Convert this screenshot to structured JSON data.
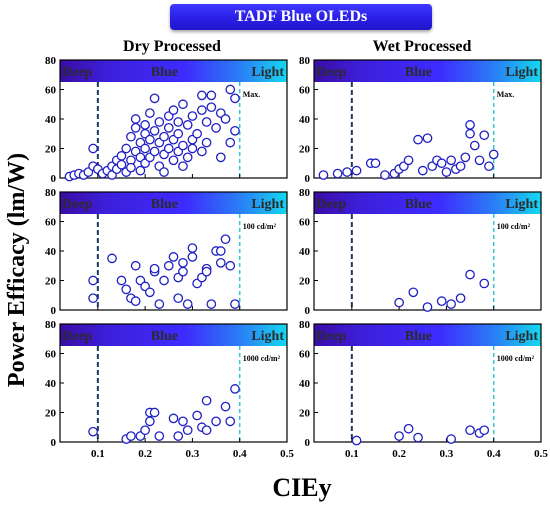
{
  "banner_title": "TADF Blue OLEDs",
  "y_axis_label": "Power Efficacy (lm/W)",
  "x_axis_label": "CIEy",
  "column_titles": [
    "Dry Processed",
    "Wet Processed"
  ],
  "region_labels": {
    "deep": "Deep",
    "blue": "Blue",
    "light": "Light"
  },
  "colors": {
    "banner": "#2a1fe6",
    "gradient_start": "#3a0ca3",
    "gradient_mid": "#3d2bff",
    "gradient_end": "#14d8f0",
    "marker_stroke": "#1f1fc4",
    "deep_line": "#1c3a5e",
    "light_line": "#2ec7d6"
  },
  "chart_data": [
    {
      "type": "scatter",
      "panel": "dry-max",
      "annotation": "Max.",
      "xlim": [
        0.02,
        0.5
      ],
      "ylim": [
        0,
        80
      ],
      "yticks": [
        0,
        20,
        40,
        60,
        80
      ],
      "xticks": [
        0.1,
        0.2,
        0.3,
        0.4,
        0.5
      ],
      "vlines": {
        "deep": 0.1,
        "light": 0.4
      },
      "points": [
        [
          0.04,
          1
        ],
        [
          0.05,
          2
        ],
        [
          0.06,
          3
        ],
        [
          0.07,
          2
        ],
        [
          0.08,
          4
        ],
        [
          0.09,
          8
        ],
        [
          0.09,
          20
        ],
        [
          0.1,
          6
        ],
        [
          0.11,
          3
        ],
        [
          0.12,
          5
        ],
        [
          0.13,
          8
        ],
        [
          0.13,
          2
        ],
        [
          0.14,
          12
        ],
        [
          0.14,
          6
        ],
        [
          0.15,
          15
        ],
        [
          0.15,
          9
        ],
        [
          0.16,
          4
        ],
        [
          0.16,
          20
        ],
        [
          0.17,
          12
        ],
        [
          0.17,
          28
        ],
        [
          0.17,
          7
        ],
        [
          0.18,
          18
        ],
        [
          0.18,
          34
        ],
        [
          0.18,
          40
        ],
        [
          0.19,
          14
        ],
        [
          0.19,
          24
        ],
        [
          0.19,
          5
        ],
        [
          0.2,
          30
        ],
        [
          0.2,
          36
        ],
        [
          0.2,
          10
        ],
        [
          0.2,
          20
        ],
        [
          0.21,
          26
        ],
        [
          0.21,
          44
        ],
        [
          0.21,
          14
        ],
        [
          0.22,
          54
        ],
        [
          0.22,
          18
        ],
        [
          0.22,
          32
        ],
        [
          0.23,
          8
        ],
        [
          0.23,
          24
        ],
        [
          0.23,
          38
        ],
        [
          0.24,
          16
        ],
        [
          0.24,
          28
        ],
        [
          0.24,
          4
        ],
        [
          0.25,
          34
        ],
        [
          0.25,
          20
        ],
        [
          0.25,
          42
        ],
        [
          0.26,
          12
        ],
        [
          0.26,
          26
        ],
        [
          0.26,
          46
        ],
        [
          0.27,
          30
        ],
        [
          0.27,
          18
        ],
        [
          0.27,
          38
        ],
        [
          0.28,
          22
        ],
        [
          0.28,
          50
        ],
        [
          0.28,
          8
        ],
        [
          0.29,
          36
        ],
        [
          0.29,
          14
        ],
        [
          0.3,
          42
        ],
        [
          0.3,
          26
        ],
        [
          0.3,
          20
        ],
        [
          0.31,
          30
        ],
        [
          0.32,
          56
        ],
        [
          0.32,
          46
        ],
        [
          0.32,
          18
        ],
        [
          0.33,
          38
        ],
        [
          0.33,
          24
        ],
        [
          0.34,
          56
        ],
        [
          0.34,
          48
        ],
        [
          0.35,
          34
        ],
        [
          0.36,
          44
        ],
        [
          0.36,
          14
        ],
        [
          0.37,
          40
        ],
        [
          0.38,
          60
        ],
        [
          0.38,
          24
        ],
        [
          0.39,
          32
        ],
        [
          0.39,
          54
        ]
      ]
    },
    {
      "type": "scatter",
      "panel": "wet-max",
      "annotation": "Max.",
      "xlim": [
        0.02,
        0.5
      ],
      "ylim": [
        0,
        80
      ],
      "yticks": [
        0,
        20,
        40,
        60,
        80
      ],
      "xticks": [
        0.1,
        0.2,
        0.3,
        0.4,
        0.5
      ],
      "vlines": {
        "deep": 0.1,
        "light": 0.4
      },
      "points": [
        [
          0.04,
          2
        ],
        [
          0.07,
          3
        ],
        [
          0.09,
          4
        ],
        [
          0.11,
          5
        ],
        [
          0.14,
          10
        ],
        [
          0.15,
          10
        ],
        [
          0.17,
          2
        ],
        [
          0.19,
          3
        ],
        [
          0.2,
          6
        ],
        [
          0.21,
          8
        ],
        [
          0.22,
          12
        ],
        [
          0.24,
          26
        ],
        [
          0.25,
          5
        ],
        [
          0.26,
          27
        ],
        [
          0.27,
          8
        ],
        [
          0.28,
          12
        ],
        [
          0.29,
          10
        ],
        [
          0.3,
          4
        ],
        [
          0.31,
          12
        ],
        [
          0.32,
          6
        ],
        [
          0.33,
          8
        ],
        [
          0.34,
          14
        ],
        [
          0.35,
          36
        ],
        [
          0.35,
          30
        ],
        [
          0.36,
          22
        ],
        [
          0.37,
          12
        ],
        [
          0.38,
          29
        ],
        [
          0.39,
          8
        ],
        [
          0.4,
          16
        ]
      ]
    },
    {
      "type": "scatter",
      "panel": "dry-100",
      "annotation": "100 cd/m²",
      "xlim": [
        0.02,
        0.5
      ],
      "ylim": [
        0,
        80
      ],
      "yticks": [
        0,
        20,
        40,
        60,
        80
      ],
      "xticks": [
        0.1,
        0.2,
        0.3,
        0.4,
        0.5
      ],
      "vlines": {
        "deep": 0.1,
        "light": 0.4
      },
      "points": [
        [
          0.09,
          8
        ],
        [
          0.09,
          20
        ],
        [
          0.13,
          35
        ],
        [
          0.15,
          20
        ],
        [
          0.16,
          14
        ],
        [
          0.17,
          8
        ],
        [
          0.18,
          6
        ],
        [
          0.18,
          30
        ],
        [
          0.19,
          20
        ],
        [
          0.2,
          16
        ],
        [
          0.21,
          12
        ],
        [
          0.22,
          26
        ],
        [
          0.22,
          28
        ],
        [
          0.23,
          4
        ],
        [
          0.24,
          20
        ],
        [
          0.25,
          30
        ],
        [
          0.26,
          36
        ],
        [
          0.27,
          8
        ],
        [
          0.27,
          22
        ],
        [
          0.28,
          26
        ],
        [
          0.28,
          32
        ],
        [
          0.29,
          4
        ],
        [
          0.3,
          42
        ],
        [
          0.3,
          36
        ],
        [
          0.31,
          18
        ],
        [
          0.32,
          22
        ],
        [
          0.33,
          28
        ],
        [
          0.33,
          26
        ],
        [
          0.34,
          4
        ],
        [
          0.35,
          40
        ],
        [
          0.36,
          32
        ],
        [
          0.36,
          40
        ],
        [
          0.37,
          48
        ],
        [
          0.38,
          30
        ],
        [
          0.39,
          4
        ]
      ]
    },
    {
      "type": "scatter",
      "panel": "wet-100",
      "annotation": "100 cd/m²",
      "xlim": [
        0.02,
        0.5
      ],
      "ylim": [
        0,
        80
      ],
      "yticks": [
        0,
        20,
        40,
        60,
        80
      ],
      "xticks": [
        0.1,
        0.2,
        0.3,
        0.4,
        0.5
      ],
      "vlines": {
        "deep": 0.1,
        "light": 0.4
      },
      "points": [
        [
          0.2,
          5
        ],
        [
          0.23,
          12
        ],
        [
          0.26,
          2
        ],
        [
          0.29,
          6
        ],
        [
          0.31,
          4
        ],
        [
          0.33,
          8
        ],
        [
          0.35,
          24
        ],
        [
          0.38,
          18
        ]
      ]
    },
    {
      "type": "scatter",
      "panel": "dry-1000",
      "annotation": "1000 cd/m²",
      "xlim": [
        0.02,
        0.5
      ],
      "ylim": [
        0,
        80
      ],
      "yticks": [
        0,
        20,
        40,
        60,
        80
      ],
      "xticks": [
        0.1,
        0.2,
        0.3,
        0.4,
        0.5
      ],
      "vlines": {
        "deep": 0.1,
        "light": 0.4
      },
      "points": [
        [
          0.09,
          7
        ],
        [
          0.16,
          2
        ],
        [
          0.17,
          4
        ],
        [
          0.19,
          4
        ],
        [
          0.2,
          8
        ],
        [
          0.21,
          14
        ],
        [
          0.21,
          20
        ],
        [
          0.22,
          20
        ],
        [
          0.23,
          4
        ],
        [
          0.26,
          16
        ],
        [
          0.27,
          4
        ],
        [
          0.28,
          14
        ],
        [
          0.29,
          8
        ],
        [
          0.31,
          18
        ],
        [
          0.32,
          10
        ],
        [
          0.33,
          28
        ],
        [
          0.33,
          8
        ],
        [
          0.35,
          14
        ],
        [
          0.37,
          24
        ],
        [
          0.38,
          14
        ],
        [
          0.39,
          36
        ]
      ]
    },
    {
      "type": "scatter",
      "panel": "wet-1000",
      "annotation": "1000 cd/m²",
      "xlim": [
        0.02,
        0.5
      ],
      "ylim": [
        0,
        80
      ],
      "yticks": [
        0,
        20,
        40,
        60,
        80
      ],
      "xticks": [
        0.1,
        0.2,
        0.3,
        0.4,
        0.5
      ],
      "vlines": {
        "deep": 0.1,
        "light": 0.4
      },
      "points": [
        [
          0.11,
          1
        ],
        [
          0.2,
          4
        ],
        [
          0.22,
          9
        ],
        [
          0.24,
          3
        ],
        [
          0.31,
          2
        ],
        [
          0.35,
          8
        ],
        [
          0.37,
          6
        ],
        [
          0.38,
          8
        ]
      ]
    }
  ]
}
